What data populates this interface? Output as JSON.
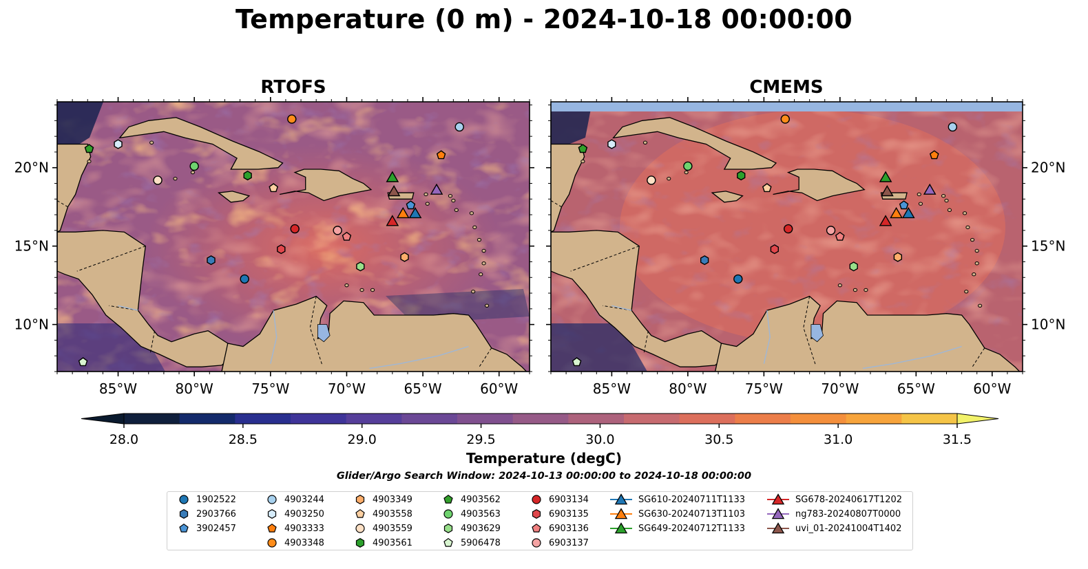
{
  "title": "Temperature (0 m) - 2024-10-18 00:00:00",
  "panels": [
    {
      "title": "RTOFS"
    },
    {
      "title": "CMEMS"
    }
  ],
  "map": {
    "lon_range": [
      -89,
      -58
    ],
    "lat_range": [
      7,
      24.2
    ],
    "lon_ticks": [
      -85,
      -80,
      -75,
      -70,
      -65,
      -60
    ],
    "lon_tick_labels": [
      "85°W",
      "80°W",
      "75°W",
      "70°W",
      "65°W",
      "60°W"
    ],
    "lat_ticks": [
      10,
      15,
      20
    ],
    "lat_tick_labels": [
      "10°N",
      "15°N",
      "20°N"
    ],
    "land_color": "#d2b48c",
    "lake_color": "#97b6e1"
  },
  "colorbar": {
    "label": "Temperature (degC)",
    "min": 28.0,
    "max": 31.5,
    "step": 0.25,
    "ticks": [
      28.0,
      28.5,
      29.0,
      29.5,
      30.0,
      30.5,
      31.0,
      31.5
    ],
    "tick_labels": [
      "28.0",
      "28.5",
      "29.0",
      "29.5",
      "30.0",
      "30.5",
      "31.0",
      "31.5"
    ],
    "colors": [
      "#0f1f3c",
      "#142a6b",
      "#292f8f",
      "#3f3499",
      "#563e9a",
      "#6b4896",
      "#80508f",
      "#965a87",
      "#ad627c",
      "#c76b70",
      "#dc6f5c",
      "#ec7e4a",
      "#f48f3c",
      "#f7a43c",
      "#f5c447"
    ],
    "under_color": "#0a1a2e",
    "over_color": "#f2f26a"
  },
  "search_window": "Glider/Argo Search Window: 2024-10-13 00:00:00 to 2024-10-18 00:00:00",
  "platforms": [
    {
      "id": "1902522",
      "marker": "circle",
      "color": "#1f77b4",
      "lon": -76.7,
      "lat": 12.9
    },
    {
      "id": "2903766",
      "marker": "hexagon",
      "color": "#3a7cb8",
      "lon": -78.9,
      "lat": 14.1
    },
    {
      "id": "3902457",
      "marker": "pentagon",
      "color": "#4a94d6",
      "lon": -65.8,
      "lat": 17.6
    },
    {
      "id": "4903244",
      "marker": "circle",
      "color": "#a8d1ee",
      "lon": -62.6,
      "lat": 22.6
    },
    {
      "id": "4903250",
      "marker": "hexagon",
      "color": "#d6ecfa",
      "lon": -85.0,
      "lat": 21.5
    },
    {
      "id": "4903333",
      "marker": "pentagon",
      "color": "#ff7f0e",
      "lon": -63.8,
      "lat": 20.8
    },
    {
      "id": "4903348",
      "marker": "circle",
      "color": "#ff8c1a",
      "lon": -73.6,
      "lat": 23.1
    },
    {
      "id": "4903349",
      "marker": "hexagon",
      "color": "#fdae6b",
      "lon": -66.2,
      "lat": 14.3
    },
    {
      "id": "4903558",
      "marker": "pentagon",
      "color": "#fdd0a2",
      "lon": -74.8,
      "lat": 18.7
    },
    {
      "id": "4903559",
      "marker": "circle",
      "color": "#fde0c5",
      "lon": -82.4,
      "lat": 19.2
    },
    {
      "id": "4903561",
      "marker": "hexagon",
      "color": "#2ca02c",
      "lon": -76.5,
      "lat": 19.5
    },
    {
      "id": "4903562",
      "marker": "pentagon",
      "color": "#33a02c",
      "lon": -86.9,
      "lat": 21.2
    },
    {
      "id": "4903563",
      "marker": "circle",
      "color": "#6fd36f",
      "lon": -80.0,
      "lat": 20.1
    },
    {
      "id": "4903629",
      "marker": "hexagon",
      "color": "#98df8a",
      "lon": -69.1,
      "lat": 13.7
    },
    {
      "id": "5906478",
      "marker": "pentagon",
      "color": "#d8f5d0",
      "lon": -87.3,
      "lat": 7.6
    },
    {
      "id": "6903134",
      "marker": "circle",
      "color": "#d62728",
      "lon": -73.4,
      "lat": 16.1
    },
    {
      "id": "6903135",
      "marker": "hexagon",
      "color": "#e0474c",
      "lon": -74.3,
      "lat": 14.8
    },
    {
      "id": "6903136",
      "marker": "pentagon",
      "color": "#f08080",
      "lon": -70.0,
      "lat": 15.6
    },
    {
      "id": "6903137",
      "marker": "circle",
      "color": "#f4a3a3",
      "lon": -70.6,
      "lat": 16.0
    },
    {
      "id": "SG610-20240711T1133",
      "marker": "triangle",
      "color": "#1f77b4",
      "lon": -65.5,
      "lat": 17.1
    },
    {
      "id": "SG630-20240713T1103",
      "marker": "triangle",
      "color": "#ff7f0e",
      "lon": -66.3,
      "lat": 17.1
    },
    {
      "id": "SG649-20240712T1133",
      "marker": "triangle",
      "color": "#2ca02c",
      "lon": -67.0,
      "lat": 19.4
    },
    {
      "id": "SG678-20240617T1202",
      "marker": "triangle",
      "color": "#d62728",
      "lon": -67.0,
      "lat": 16.6
    },
    {
      "id": "ng783-20240807T0000",
      "marker": "triangle",
      "color": "#9467bd",
      "lon": -64.1,
      "lat": 18.6
    },
    {
      "id": "uvi_01-20241004T1402",
      "marker": "triangle",
      "color": "#8c564b",
      "lon": -66.9,
      "lat": 18.5
    }
  ]
}
